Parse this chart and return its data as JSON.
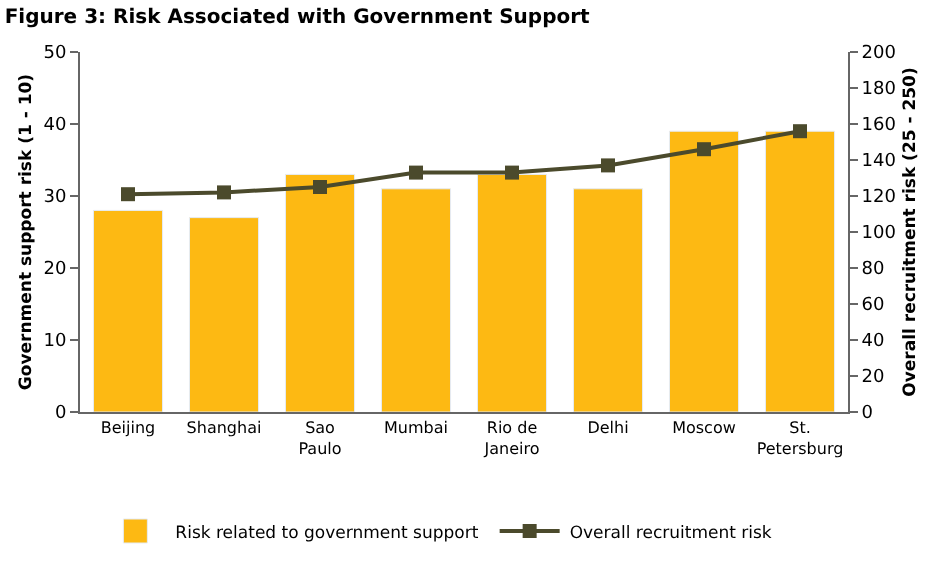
{
  "chart_data": {
    "type": "bar",
    "title": "Figure 3: Risk Associated with Government Support",
    "categories": [
      "Beijing",
      "Shanghai",
      "Sao Paulo",
      "Mumbai",
      "Rio de Janeiro",
      "Delhi",
      "Moscow",
      "St. Petersburg"
    ],
    "series": [
      {
        "name": "Risk related to government support",
        "color": "#fdb913",
        "values": [
          28,
          27,
          33,
          31,
          33,
          31,
          39,
          39
        ]
      },
      {
        "name": "Overall recruitment risk",
        "type": "line",
        "axis": "y2",
        "color": "#4b4a2c",
        "marker": "square",
        "values": [
          121,
          122,
          125,
          133,
          133,
          137,
          146,
          156
        ]
      }
    ],
    "ylabel": "Government support risk (1 - 10)",
    "y2label": "Overall recruitment risk (25 - 250)",
    "ylim": [
      0,
      50
    ],
    "yticks": [
      0,
      10,
      20,
      30,
      40,
      50
    ],
    "y2lim": [
      0,
      200
    ],
    "y2ticks": [
      0,
      20,
      40,
      60,
      80,
      100,
      120,
      140,
      160,
      180,
      200
    ],
    "legend": "bottom"
  }
}
